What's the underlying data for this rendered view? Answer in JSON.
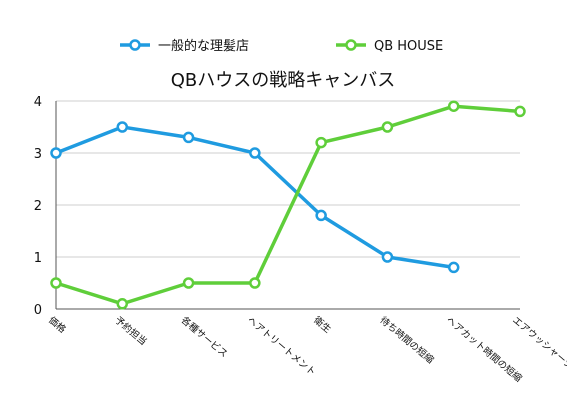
{
  "chart_data": {
    "type": "line",
    "title": "QBハウスの戦略キャンバス",
    "xlabel": "",
    "ylabel": "",
    "ylim": [
      0,
      4
    ],
    "yticks": [
      0,
      1,
      2,
      3,
      4
    ],
    "grid": true,
    "legend_position": "top",
    "categories": [
      "価格",
      "予約担当",
      "各種サービス",
      "ヘアトリートメント",
      "衛生",
      "待ち時間の短縮",
      "ヘアカット時間の短縮",
      "エアウッシャーシステム"
    ],
    "series": [
      {
        "name": "一般的な理髪店",
        "color": "#1f9be0",
        "values": [
          3.0,
          3.5,
          3.3,
          3.0,
          1.8,
          1.0,
          0.8,
          null
        ]
      },
      {
        "name": "QB HOUSE",
        "color": "#5fce3a",
        "values": [
          0.5,
          0.1,
          0.5,
          0.5,
          3.2,
          3.5,
          3.9,
          3.8
        ]
      }
    ]
  }
}
